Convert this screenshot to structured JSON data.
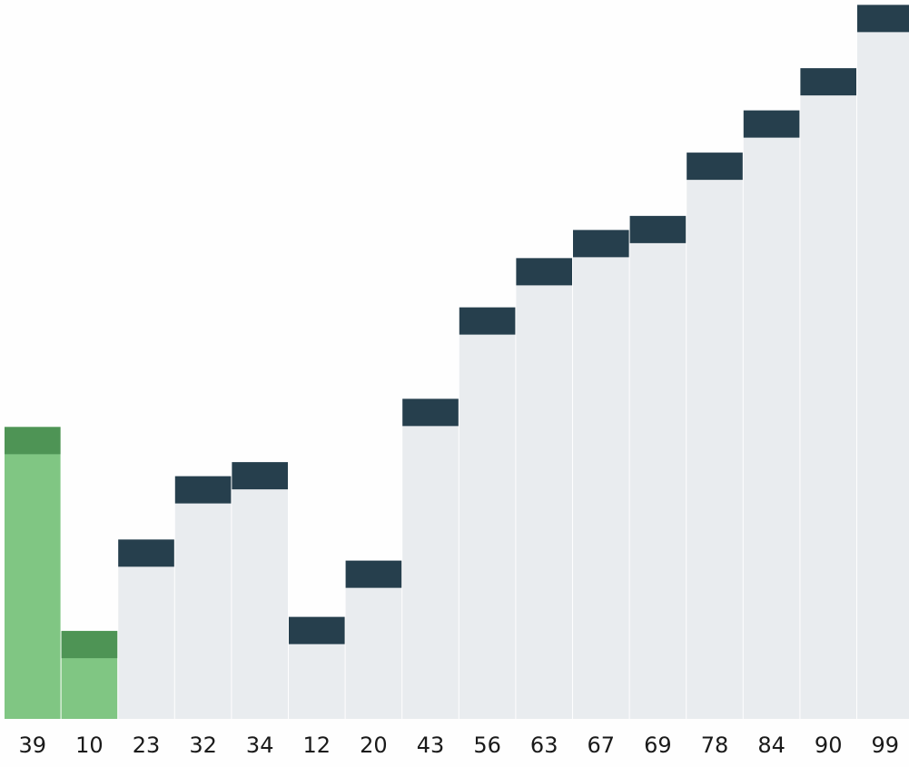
{
  "colors": {
    "background": "#fefefe",
    "bar_default_fill": "#e9ecef",
    "bar_default_cap": "#263f4d",
    "bar_highlight_fill": "#80c683",
    "bar_highlight_cap": "#4e9455",
    "label_text": "#1a1a1a"
  },
  "chart_data": {
    "type": "bar",
    "title": "",
    "xlabel": "",
    "ylabel": "",
    "categories": [
      "39",
      "10",
      "23",
      "32",
      "34",
      "12",
      "20",
      "43",
      "56",
      "63",
      "67",
      "69",
      "78",
      "84",
      "90",
      "99"
    ],
    "values": [
      39,
      10,
      23,
      32,
      34,
      12,
      20,
      43,
      56,
      63,
      67,
      69,
      78,
      84,
      90,
      99
    ],
    "highlighted": [
      true,
      true,
      false,
      false,
      false,
      false,
      false,
      false,
      false,
      false,
      false,
      false,
      false,
      false,
      false,
      false
    ],
    "ylim": [
      0,
      103
    ],
    "grid": false,
    "legend": "none"
  }
}
